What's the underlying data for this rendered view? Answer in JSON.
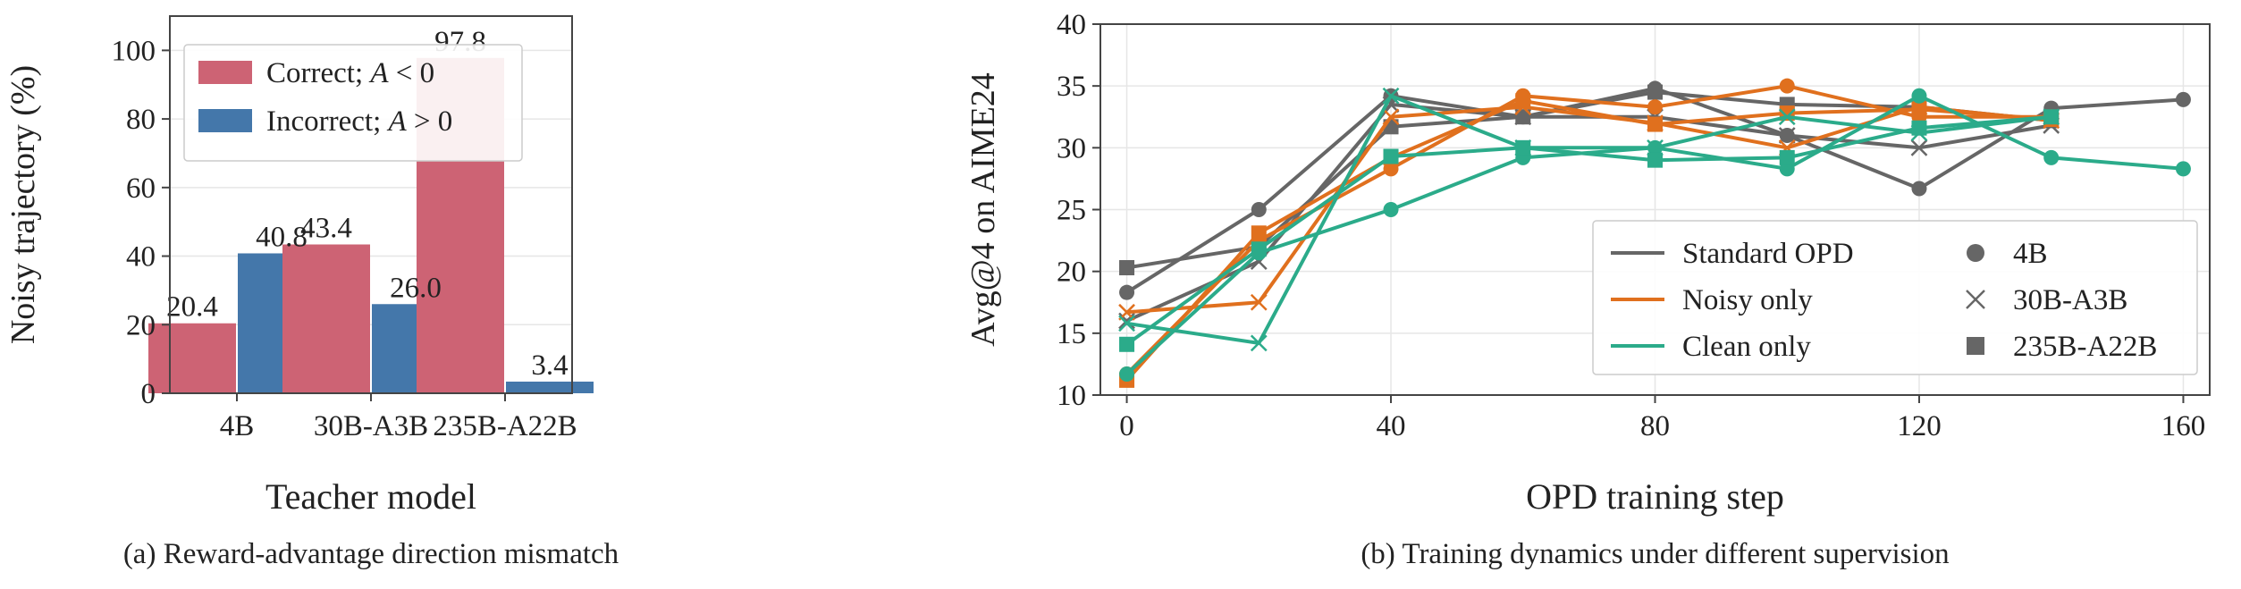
{
  "chart_data": [
    {
      "type": "bar",
      "caption": "(a) Reward-advantage direction mismatch",
      "xlabel": "Teacher model",
      "ylabel": "Noisy trajectory (%)",
      "ylim": [
        0,
        110
      ],
      "yticks": [
        "0",
        "20",
        "40",
        "60",
        "80",
        "100"
      ],
      "categories": [
        "4B",
        "30B-A3B",
        "235B-A22B"
      ],
      "grid": true,
      "legend_position": "top-left",
      "series": [
        {
          "name": "Correct; A < 0",
          "name_parts": [
            "Correct; ",
            "A",
            " < 0"
          ],
          "color": "#cd6374",
          "values": [
            20.4,
            43.4,
            97.8
          ],
          "labels": [
            "20.4",
            "43.4",
            "97.8"
          ]
        },
        {
          "name": "Incorrect; A > 0",
          "name_parts": [
            "Incorrect; ",
            "A",
            " > 0"
          ],
          "color": "#4477aa",
          "values": [
            40.8,
            26.0,
            3.4
          ],
          "labels": [
            "40.8",
            "26.0",
            "3.4"
          ]
        }
      ]
    },
    {
      "type": "line",
      "caption": "(b) Training dynamics under different supervision",
      "xlabel": "OPD training step",
      "ylabel": "Avg@4 on AIME24",
      "xlim": [
        -4,
        164
      ],
      "ylim": [
        10,
        40
      ],
      "xticks": [
        "0",
        "40",
        "80",
        "120",
        "160"
      ],
      "yticks": [
        "10",
        "15",
        "20",
        "25",
        "30",
        "35",
        "40"
      ],
      "grid": true,
      "legend_position": "bottom-right",
      "methods": [
        {
          "name": "Standard OPD",
          "color": "#666666"
        },
        {
          "name": "Noisy only",
          "color": "#e0701e"
        },
        {
          "name": "Clean only",
          "color": "#2bab8a"
        }
      ],
      "models": [
        {
          "name": "4B",
          "marker": "circle"
        },
        {
          "name": "30B-A3B",
          "marker": "x"
        },
        {
          "name": "235B-A22B",
          "marker": "square"
        }
      ],
      "series": [
        {
          "method": "Standard OPD",
          "model": "4B",
          "x": [
            0,
            20,
            40,
            60,
            80,
            100,
            120,
            140,
            160
          ],
          "y": [
            18.3,
            25.0,
            34.2,
            32.5,
            34.8,
            31.0,
            26.7,
            33.2,
            33.9
          ]
        },
        {
          "method": "Standard OPD",
          "model": "30B-A3B",
          "x": [
            0,
            20,
            40,
            60,
            80,
            100,
            120,
            140
          ],
          "y": [
            16.0,
            20.8,
            33.5,
            32.5,
            32.5,
            31.0,
            30.0,
            31.8
          ]
        },
        {
          "method": "Standard OPD",
          "model": "235B-A22B",
          "x": [
            0,
            20,
            40,
            60,
            80,
            100,
            120,
            140
          ],
          "y": [
            20.3,
            22.0,
            31.7,
            32.5,
            34.5,
            33.5,
            33.3,
            32.2
          ]
        },
        {
          "method": "Noisy only",
          "model": "4B",
          "x": [
            0,
            20,
            40,
            60,
            80,
            100,
            120,
            140
          ],
          "y": [
            11.7,
            22.5,
            28.3,
            34.2,
            33.3,
            35.0,
            32.5,
            32.5
          ]
        },
        {
          "method": "Noisy only",
          "model": "30B-A3B",
          "x": [
            0,
            20,
            40,
            60,
            80,
            100,
            120,
            140
          ],
          "y": [
            16.7,
            17.5,
            32.5,
            33.3,
            32.0,
            30.0,
            33.3,
            32.2
          ]
        },
        {
          "method": "Noisy only",
          "model": "235B-A22B",
          "x": [
            0,
            20,
            40,
            60,
            80,
            100,
            120,
            140
          ],
          "y": [
            11.2,
            23.1,
            29.2,
            33.8,
            31.9,
            32.8,
            33.1,
            32.3
          ]
        },
        {
          "method": "Clean only",
          "model": "4B",
          "x": [
            0,
            20,
            40,
            60,
            80,
            100,
            120,
            140,
            160
          ],
          "y": [
            11.7,
            21.5,
            25.0,
            29.2,
            30.0,
            28.3,
            34.2,
            29.2,
            28.3
          ]
        },
        {
          "method": "Clean only",
          "model": "30B-A3B",
          "x": [
            0,
            20,
            40,
            60,
            80,
            100,
            120,
            140
          ],
          "y": [
            15.8,
            14.2,
            34.2,
            30.0,
            30.0,
            32.5,
            31.2,
            32.5
          ]
        },
        {
          "method": "Clean only",
          "model": "235B-A22B",
          "x": [
            0,
            20,
            40,
            60,
            80,
            100,
            120,
            140
          ],
          "y": [
            14.1,
            21.8,
            29.3,
            30.0,
            29.0,
            29.2,
            31.6,
            32.5
          ]
        }
      ]
    }
  ]
}
